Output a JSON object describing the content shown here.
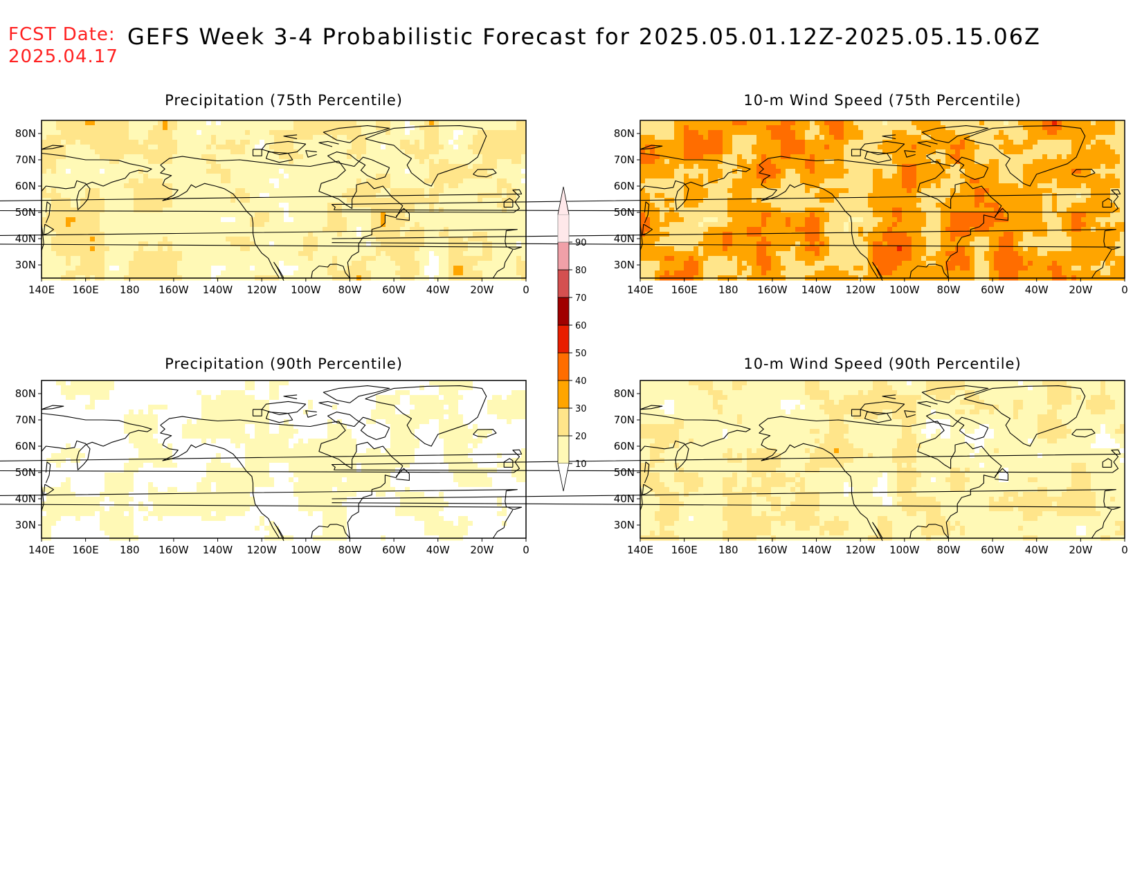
{
  "header": {
    "fcst_label": "FCST Date:",
    "fcst_date": "2025.04.17",
    "title": "GEFS Week 3-4 Probabilistic Forecast for 2025.05.01.12Z-2025.05.15.06Z"
  },
  "axes": {
    "lon_labels": [
      "140E",
      "160E",
      "180",
      "160W",
      "140W",
      "120W",
      "100W",
      "80W",
      "60W",
      "40W",
      "20W",
      "0"
    ],
    "lat_labels": [
      "80N",
      "70N",
      "60N",
      "50N",
      "40N",
      "30N"
    ]
  },
  "panels": [
    {
      "title": "Precipitation (75th Percentile)",
      "scheme": "precip75"
    },
    {
      "title": "10-m Wind Speed (75th Percentile)",
      "scheme": "wind75"
    },
    {
      "title": "Precipitation (90th Percentile)",
      "scheme": "precip90"
    },
    {
      "title": "10-m Wind Speed (90th Percentile)",
      "scheme": "wind90"
    }
  ],
  "colorbar": {
    "levels": [
      "10",
      "20",
      "30",
      "40",
      "50",
      "60",
      "70",
      "80",
      "90"
    ],
    "colors": [
      "#fff9b6",
      "#ffe58a",
      "#ffa500",
      "#ff6d00",
      "#e81e00",
      "#a00000",
      "#d45050",
      "#f0a0a8",
      "#ffe8ea"
    ]
  }
}
